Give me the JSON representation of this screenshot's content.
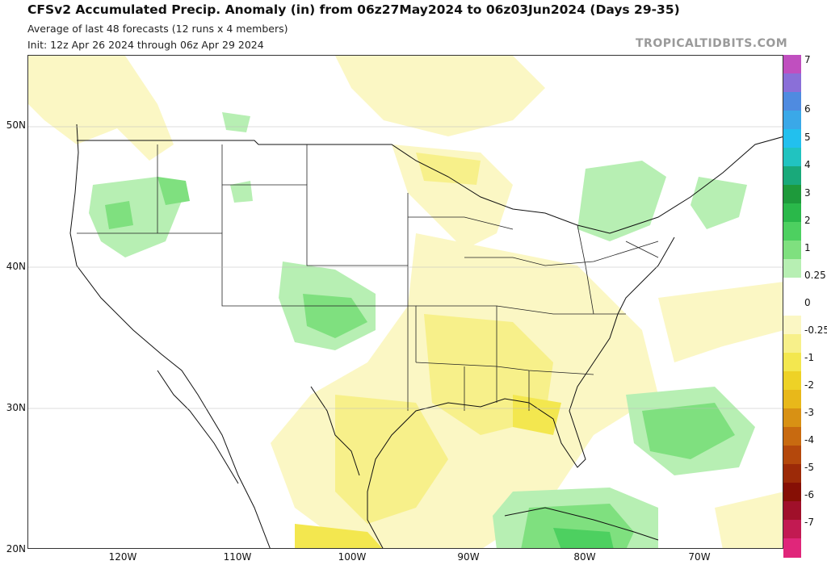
{
  "header": {
    "title": "CFSv2 Accumulated Precip. Anomaly (in) from 06z27May2024 to 06z03Jun2024 (Days 29-35)",
    "subtitle_1": "Average of last 48 forecasts (12 runs x 4 members)",
    "subtitle_2": "Init: 12z Apr 26 2024 through 06z Apr 29 2024",
    "brand": "TROPICALTIDBITS.COM"
  },
  "axes": {
    "lat_labels": [
      "50N",
      "40N",
      "30N",
      "20N"
    ],
    "lon_labels": [
      "120W",
      "110W",
      "100W",
      "90W",
      "80W",
      "70W"
    ]
  },
  "colorbar": {
    "labels": [
      "7",
      "6",
      "5",
      "4",
      "3",
      "2",
      "1",
      "0.25",
      "0",
      "-0.25",
      "-1",
      "-2",
      "-3",
      "-4",
      "-5",
      "-6",
      "-7"
    ],
    "colors": [
      "#c04fbf",
      "#8a6fd8",
      "#4f8be0",
      "#3aa8e8",
      "#22c0ee",
      "#21c3c0",
      "#19a97a",
      "#1e9a3b",
      "#2ab84a",
      "#4dd060",
      "#7fe07f",
      "#b7efb3",
      "#ffffff",
      "#ffffff",
      "#fbf7c4",
      "#f7f08a",
      "#f3e74f",
      "#eed226",
      "#e8b81a",
      "#d89114",
      "#c86a10",
      "#b4480c",
      "#9c2a08",
      "#860f05",
      "#a0102a",
      "#c21a52",
      "#e0267a"
    ]
  }
}
